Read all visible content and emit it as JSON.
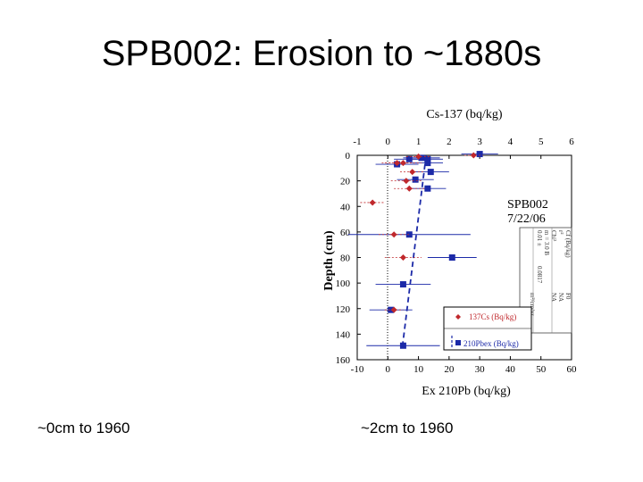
{
  "slide": {
    "title": "SPB002: Erosion to ~1880s",
    "caption_left": "~0cm to 1960",
    "caption_right": "~2cm to 1960"
  },
  "chart_data": {
    "type": "scatter",
    "top_axis_label": "Cs-137 (bq/kg)",
    "bottom_axis_label": "Ex 210Pb (bq/kg)",
    "ylabel": "Depth (cm)",
    "top_ticks": [
      "-1",
      "0",
      "1",
      "2",
      "3",
      "4",
      "5",
      "6"
    ],
    "bottom_ticks": [
      "-10",
      "0",
      "10",
      "20",
      "30",
      "40",
      "50",
      "60"
    ],
    "y_ticks": [
      "0",
      "20",
      "40",
      "60",
      "80",
      "100",
      "120",
      "140",
      "160"
    ],
    "top_xlim": [
      -1,
      6
    ],
    "bottom_xlim": [
      -10,
      60
    ],
    "ylim": [
      0,
      160
    ],
    "inset_label": [
      "SPB002",
      "7/22/06"
    ],
    "fit_box_text": [
      "Cf (Bq/kg)",
      "r²",
      "Chi²",
      "m = 3.0 B",
      "0.01 ±",
      "0.0817",
      "F0",
      "NA",
      "NA",
      "m²/cm/yr"
    ],
    "legend": [
      "137Cs (Bq/kg)",
      "210Pbex (Bq/kg)"
    ],
    "colors": {
      "cs137": "#c0282c",
      "pb210": "#1c2aa8",
      "fit": "#1c2aa8"
    },
    "series": [
      {
        "name": "137Cs (Bq/kg)",
        "marker": "diamond",
        "points": [
          {
            "x": 2.8,
            "y": 0,
            "xerr": 0.3
          },
          {
            "x": 1.0,
            "y": 1,
            "xerr": 0.4
          },
          {
            "x": 0.3,
            "y": 6,
            "xerr": 0.5
          },
          {
            "x": 0.5,
            "y": 6,
            "xerr": 0.6
          },
          {
            "x": 0.8,
            "y": 13,
            "xerr": 0.4
          },
          {
            "x": 0.6,
            "y": 20,
            "xerr": 0.5
          },
          {
            "x": 0.7,
            "y": 26,
            "xerr": 0.5
          },
          {
            "x": -0.5,
            "y": 37,
            "xerr": 0.4
          },
          {
            "x": 0.2,
            "y": 62,
            "xerr": 0.5
          },
          {
            "x": 0.5,
            "y": 80,
            "xerr": 0.6
          },
          {
            "x": 0.2,
            "y": 121,
            "xerr": 0.3
          }
        ]
      },
      {
        "name": "210Pbex (Bq/kg)",
        "marker": "square",
        "points": [
          {
            "x": 30,
            "y": -1,
            "xerr": 6
          },
          {
            "x": 11,
            "y": 2,
            "xerr": 6
          },
          {
            "x": 7,
            "y": 3,
            "xerr": 5
          },
          {
            "x": 13,
            "y": 3,
            "xerr": 5
          },
          {
            "x": 13,
            "y": 6,
            "xerr": 5
          },
          {
            "x": 3,
            "y": 7,
            "xerr": 7
          },
          {
            "x": 14,
            "y": 13,
            "xerr": 6
          },
          {
            "x": 9,
            "y": 19,
            "xerr": 6
          },
          {
            "x": 13,
            "y": 26,
            "xerr": 6
          },
          {
            "x": 7,
            "y": 62,
            "xerr": 20
          },
          {
            "x": 21,
            "y": 80,
            "xerr": 8
          },
          {
            "x": 5,
            "y": 101,
            "xerr": 9
          },
          {
            "x": 1,
            "y": 121,
            "xerr": 7
          },
          {
            "x": 5,
            "y": 149,
            "xerr": 12
          }
        ]
      }
    ],
    "fit_line": {
      "name": "model fit",
      "x": [
        12.5,
        4.8
      ],
      "y": [
        0,
        149
      ]
    }
  }
}
